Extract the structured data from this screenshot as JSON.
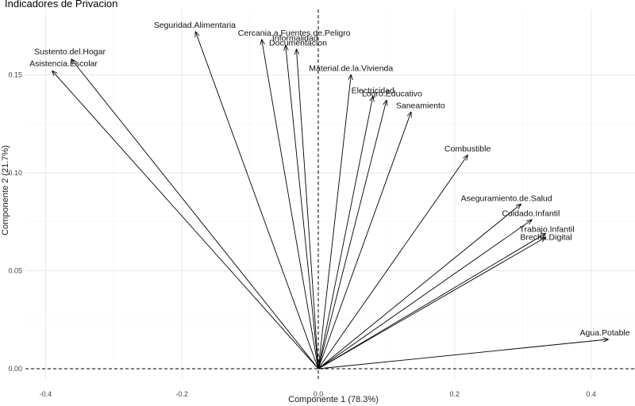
{
  "chart_data": {
    "type": "scatter",
    "subtype": "pca-biplot-vectors",
    "title": "Indicadores de Privacion",
    "xlabel": "Componente 1 (78.3%)",
    "ylabel": "Componente 2 (21.7%)",
    "xlim": [
      -0.4,
      0.45
    ],
    "ylim": [
      -0.005,
      0.175
    ],
    "xticks": [
      -0.4,
      -0.2,
      0.0,
      0.2,
      0.4
    ],
    "xtick_labels": [
      "-0.4",
      "-0.2",
      "0.0",
      "0.2",
      "0.4"
    ],
    "yticks": [
      0.0,
      0.05,
      0.1,
      0.15
    ],
    "ytick_labels": [
      "0.00",
      "0.05",
      "0.10",
      "0.15"
    ],
    "grid": true,
    "zero_lines": true,
    "vectors": [
      {
        "name": "Sustento.del.Hogar",
        "x": -0.362,
        "y": 0.158
      },
      {
        "name": "Asistencia.Escolar",
        "x": -0.39,
        "y": 0.152
      },
      {
        "name": "Seguridad.Alimentaria",
        "x": -0.18,
        "y": 0.172
      },
      {
        "name": "Cercania.a.Fuentes.de.Peligro",
        "x": -0.083,
        "y": 0.168
      },
      {
        "name": "Informalidad",
        "x": -0.048,
        "y": 0.165
      },
      {
        "name": "Documentacion",
        "x": -0.032,
        "y": 0.163
      },
      {
        "name": "Material.de.la.Vivienda",
        "x": 0.048,
        "y": 0.15
      },
      {
        "name": "Electricidad",
        "x": 0.08,
        "y": 0.139
      },
      {
        "name": "Logro.Educativo",
        "x": 0.1,
        "y": 0.137
      },
      {
        "name": "Saneamiento",
        "x": 0.136,
        "y": 0.131
      },
      {
        "name": "Combustible",
        "x": 0.219,
        "y": 0.109
      },
      {
        "name": "Aseguramiento.de.Salud",
        "x": 0.297,
        "y": 0.084
      },
      {
        "name": "Cuidado.Infantil",
        "x": 0.313,
        "y": 0.076
      },
      {
        "name": "Trabajo.Infantil",
        "x": 0.333,
        "y": 0.069
      },
      {
        "name": "Brecha.Digital",
        "x": 0.333,
        "y": 0.067
      },
      {
        "name": "Agua.Potable",
        "x": 0.425,
        "y": 0.015
      }
    ]
  }
}
